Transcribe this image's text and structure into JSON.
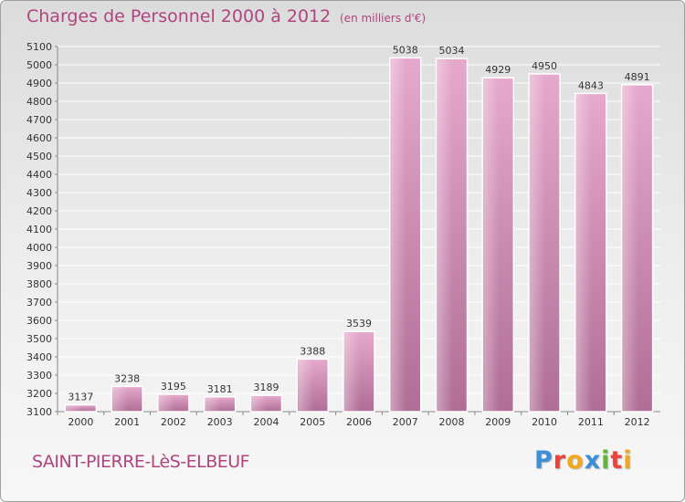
{
  "header": {
    "title": "Charges de Personnel 2000 à 2012",
    "unit": "(en milliers d'€)"
  },
  "footer": {
    "commune": "SAINT-PIERRE-LèS-ELBEUF",
    "logo_text": "Proxiti",
    "logo_colors": [
      "#3a8fd6",
      "#e8453c",
      "#f0a81c",
      "#3a8fd6",
      "#5db83a",
      "#e8453c",
      "#f0a81c"
    ]
  },
  "colors": {
    "bar_light": "#e6a8cc",
    "bar_dark": "#b06e96",
    "grid": "#ffffff",
    "text_accent": "#b0447e"
  },
  "chart_data": {
    "type": "bar",
    "categories": [
      "2000",
      "2001",
      "2002",
      "2003",
      "2004",
      "2005",
      "2006",
      "2007",
      "2008",
      "2009",
      "2010",
      "2011",
      "2012"
    ],
    "values": [
      3137,
      3238,
      3195,
      3181,
      3189,
      3388,
      3539,
      5038,
      5034,
      4929,
      4950,
      4843,
      4891
    ],
    "title": "Charges de Personnel 2000 à 2012",
    "subtitle": "(en milliers d'€)",
    "xlabel": "",
    "ylabel": "",
    "ylim": [
      3100,
      5100
    ],
    "ytick_step": 100,
    "grid": true,
    "legend": "none"
  }
}
